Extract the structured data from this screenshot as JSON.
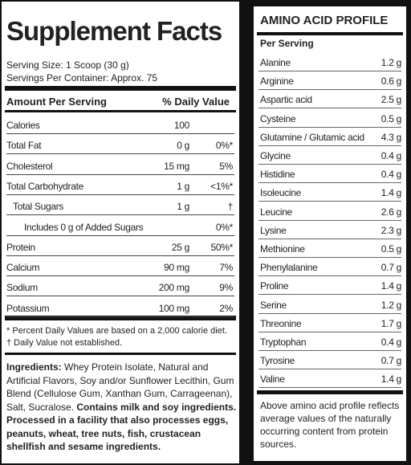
{
  "supplement_facts": {
    "title": "Supplement Facts",
    "serving_size": "Serving Size: 1 Scoop (30 g)",
    "servings_per_container": "Servings Per Container: Approx. 75",
    "header": [
      "Amount Per Serving",
      "% Daily Value"
    ],
    "rows": [
      {
        "name": "Calories",
        "amount": "100"
      },
      {
        "name": "Total Fat",
        "amount": "0 g",
        "dv": "0%*"
      },
      {
        "name": "Cholesterol",
        "amount": "15 mg",
        "dv": "5%"
      },
      {
        "name": "Total Carbohydrate",
        "amount": "1 g",
        "dv": "<1%*"
      },
      {
        "name": "Total Sugars",
        "amount": "1 g",
        "dv": "†"
      },
      {
        "name": "Includes 0 g of Added Sugars",
        "dv": "0%*"
      },
      {
        "name": "Protein",
        "amount": "25 g",
        "dv": "50%*"
      },
      {
        "name": "Calcium",
        "amount": "90 mg",
        "dv": "7%"
      },
      {
        "name": "Sodium",
        "amount": "200 mg",
        "dv": "9%"
      },
      {
        "name": "Potassium",
        "amount": "100 mg",
        "dv": "2%"
      }
    ],
    "footnotes": [
      "* Percent Daily Values are based on a 2,000 calorie diet.",
      "† Daily Value not established."
    ],
    "ingredients": [
      {
        "text": "Ingredients:",
        "bold": true
      },
      {
        "text": " Whey Protein Isolate, Natural and Artificial Flavors, Soy and/or Sunflower Lecithin, Gum Blend (Cellulose Gum, Xanthan Gum, Carrageenan), Salt, Sucralose. ",
        "bold": false
      },
      {
        "text": "Contains milk and soy ingredients. Processed in a facility that also processes eggs, peanuts, wheat, tree nuts, fish, crustacean shellfish and sesame ingredients.",
        "bold": true
      }
    ]
  },
  "amino_acid_profile": {
    "title": "AMINO ACID PROFILE",
    "subheader": "Per Serving",
    "rows": [
      [
        "Alanine",
        "1.2 g"
      ],
      [
        "Arginine",
        "0.6 g"
      ],
      [
        "Aspartic acid",
        "2.5 g"
      ],
      [
        "Cysteine",
        "0.5 g"
      ],
      [
        "Glutamine / Glutamic acid",
        "4.3 g"
      ],
      [
        "Glycine",
        "0.4 g"
      ],
      [
        "Histidine",
        "0.4 g"
      ],
      [
        "Isoleucine",
        "1.4 g"
      ],
      [
        "Leucine",
        "2.6 g"
      ],
      [
        "Lysine",
        "2.3 g"
      ],
      [
        "Methionine",
        "0.5 g"
      ],
      [
        "Phenylalanine",
        "0.7 g"
      ],
      [
        "Proline",
        "1.4 g"
      ],
      [
        "Serine",
        "1.2 g"
      ],
      [
        "Threonine",
        "1.7 g"
      ],
      [
        "Tryptophan",
        "0.4 g"
      ],
      [
        "Tyrosine",
        "0.7 g"
      ],
      [
        "Valine",
        "1.4 g"
      ]
    ],
    "note": "Above amino acid profile reflects average values of the naturally occurring content from protein sources."
  }
}
